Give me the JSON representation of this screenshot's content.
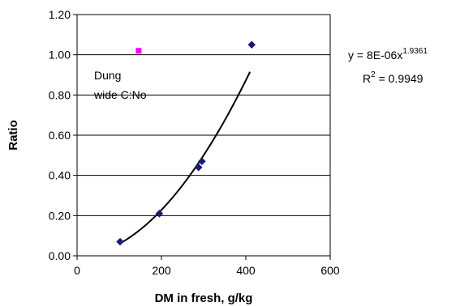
{
  "chart_data": {
    "type": "scatter",
    "xlabel": "DM in fresh, g/kg",
    "ylabel": "Ratio",
    "xlim": [
      0,
      600
    ],
    "ylim": [
      0,
      1.2
    ],
    "x_ticks": [
      "0",
      "200",
      "400",
      "600"
    ],
    "y_ticks": [
      "0.00",
      "0.20",
      "0.40",
      "0.60",
      "0.80",
      "1.00",
      "1.20"
    ],
    "grid": "horizontal",
    "series": [
      {
        "color": "#1a1a7a",
        "marker": "diamond",
        "points": [
          {
            "x": 102,
            "y": 0.07
          },
          {
            "x": 195,
            "y": 0.21
          },
          {
            "x": 288,
            "y": 0.44
          },
          {
            "x": 296,
            "y": 0.47
          },
          {
            "x": 414,
            "y": 1.05
          }
        ]
      },
      {
        "color": "#ff00ff",
        "marker": "square",
        "points": [
          {
            "x": 146,
            "y": 1.02
          }
        ]
      }
    ],
    "trendline": {
      "type": "power",
      "coefficient": 8e-06,
      "exponent": 1.9361,
      "x_range": [
        108,
        410
      ],
      "equation_prefix": "y = 8E-06x",
      "equation_exp": "1.9361",
      "r2_prefix": "R",
      "r2_sup": "2",
      "r2_value": " = 0.9949"
    },
    "annotation": {
      "line1": "Dung",
      "line2": "wide C:No"
    }
  }
}
